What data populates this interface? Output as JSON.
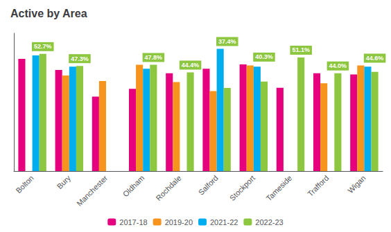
{
  "chart_data": {
    "type": "bar",
    "title": "Active by Area",
    "categories": [
      "Bolton",
      "Bury",
      "Manchester",
      "Oldham",
      "Rochdale",
      "Salford",
      "Stockport",
      "Tameside",
      "Trafford",
      "Wigan"
    ],
    "series": [
      {
        "name": "2017-18",
        "color": "#e6007e",
        "values": [
          50.5,
          45.5,
          33.5,
          37.0,
          44.0,
          46.0,
          48.0,
          37.5,
          44.0,
          43.5
        ]
      },
      {
        "name": "2019-20",
        "color": "#f7941d",
        "values": [
          null,
          43.0,
          40.5,
          47.8,
          40.0,
          36.0,
          47.5,
          null,
          39.5,
          47.5
        ]
      },
      {
        "name": "2021-22",
        "color": "#00aeef",
        "values": [
          52.0,
          47.0,
          null,
          46.0,
          null,
          55.0,
          47.0,
          null,
          null,
          47.0
        ]
      },
      {
        "name": "2022-23",
        "color": "#8dc63f",
        "values": [
          52.7,
          47.3,
          null,
          47.8,
          44.4,
          37.4,
          40.3,
          51.1,
          44.0,
          44.6
        ],
        "value_labels": [
          "52.7%",
          "47.3%",
          null,
          "47.8%",
          "44.4%",
          "37.4%",
          "40.3%",
          "51.1%",
          "44.0%",
          "44.6%"
        ]
      }
    ],
    "ylim": [
      0,
      62
    ],
    "yticks": [],
    "tick_labels": "x",
    "grid": false,
    "legend": "bottom"
  }
}
